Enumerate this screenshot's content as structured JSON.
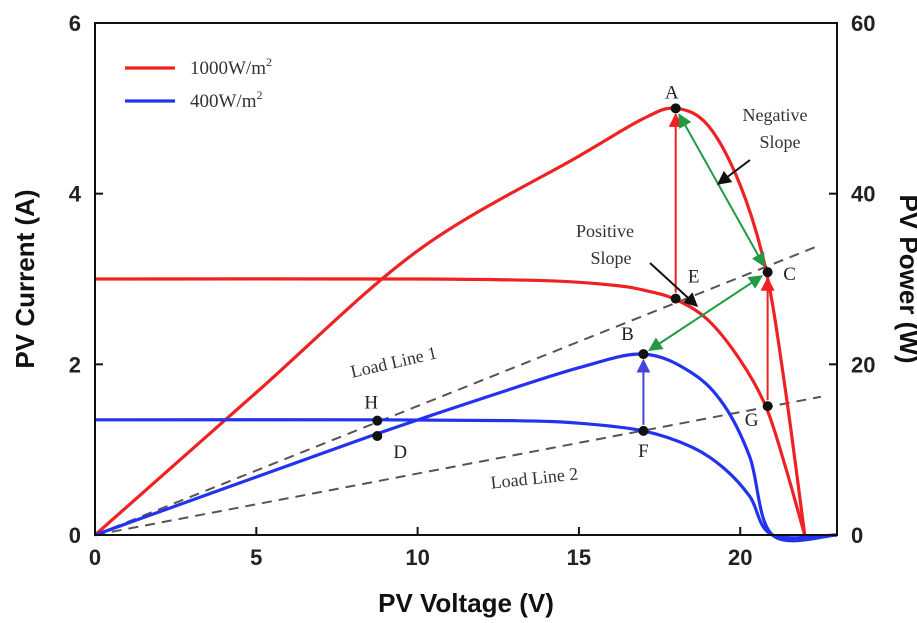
{
  "chart_data": {
    "type": "line",
    "xlabel": "PV Voltage (V)",
    "ylabel_left": "PV Current (A)",
    "ylabel_right": "PV Power (W)",
    "xlim": [
      0,
      23
    ],
    "ylim_left": [
      0,
      6
    ],
    "ylim_right": [
      0,
      60
    ],
    "x_ticks": [
      "0",
      "5",
      "10",
      "15",
      "20"
    ],
    "y_left_ticks": [
      "0",
      "2",
      "4",
      "6"
    ],
    "y_right_ticks": [
      "0",
      "20",
      "40",
      "60"
    ],
    "grid": false,
    "legend_position": "top-left",
    "legend": [
      {
        "label": "1000W/m",
        "sup": "2",
        "color": "#ee2222"
      },
      {
        "label": "400W/m",
        "sup": "2",
        "color": "#2233ee"
      }
    ],
    "series": [
      {
        "name": "1000W/m²",
        "kind": "current",
        "axis": "left",
        "color": "#ee2222",
        "x": [
          0,
          10,
          14,
          16,
          17,
          18,
          19,
          20,
          20.8,
          21.4,
          22.0
        ],
        "y": [
          3.0,
          3.0,
          2.98,
          2.93,
          2.87,
          2.76,
          2.52,
          2.05,
          1.5,
          0.8,
          0
        ]
      },
      {
        "name": "1000W/m²",
        "kind": "power",
        "axis": "right",
        "color": "#ee2222",
        "x": [
          0,
          5,
          10,
          15,
          17,
          18,
          19,
          20,
          20.8,
          21.4,
          22.0
        ],
        "y": [
          0,
          16.7,
          33.3,
          44.4,
          48.8,
          50.0,
          48.0,
          41.0,
          31.0,
          17.0,
          0
        ]
      },
      {
        "name": "400W/m²",
        "kind": "current",
        "axis": "left",
        "color": "#2233ee",
        "x": [
          0,
          8.8,
          13,
          15,
          17.0,
          18.5,
          19.5,
          20.3,
          21.0,
          23
        ],
        "y": [
          1.35,
          1.35,
          1.34,
          1.31,
          1.22,
          1.03,
          0.78,
          0.45,
          0,
          0
        ]
      },
      {
        "name": "400W/m²",
        "kind": "power",
        "axis": "right",
        "color": "#2233ee",
        "x": [
          0,
          5,
          8.7,
          12,
          15,
          17.0,
          18.5,
          19.5,
          20.3,
          21.0,
          23
        ],
        "y": [
          0,
          6.8,
          11.8,
          16.0,
          19.6,
          21.2,
          19.0,
          15.2,
          9.1,
          0,
          0
        ]
      }
    ],
    "load_lines": [
      {
        "label": "Load Line 1",
        "x": [
          0,
          22.5
        ],
        "y": [
          0,
          3.4
        ]
      },
      {
        "label": "Load Line 2",
        "x": [
          0,
          22.5
        ],
        "y": [
          0,
          1.62
        ]
      }
    ],
    "points": [
      {
        "label": "A",
        "x": 18.0,
        "y": 5.0
      },
      {
        "label": "B",
        "x": 17.0,
        "y": 2.12
      },
      {
        "label": "C",
        "x": 20.85,
        "y": 3.08
      },
      {
        "label": "D",
        "x": 8.75,
        "y": 1.16
      },
      {
        "label": "E",
        "x": 18.0,
        "y": 2.77
      },
      {
        "label": "F",
        "x": 17.0,
        "y": 1.22
      },
      {
        "label": "G",
        "x": 20.85,
        "y": 1.51
      },
      {
        "label": "H",
        "x": 8.75,
        "y": 1.34
      }
    ],
    "annotations": [
      {
        "lines": [
          "Negative",
          "Slope"
        ]
      },
      {
        "lines": [
          "Positive",
          "Slope"
        ]
      }
    ]
  }
}
